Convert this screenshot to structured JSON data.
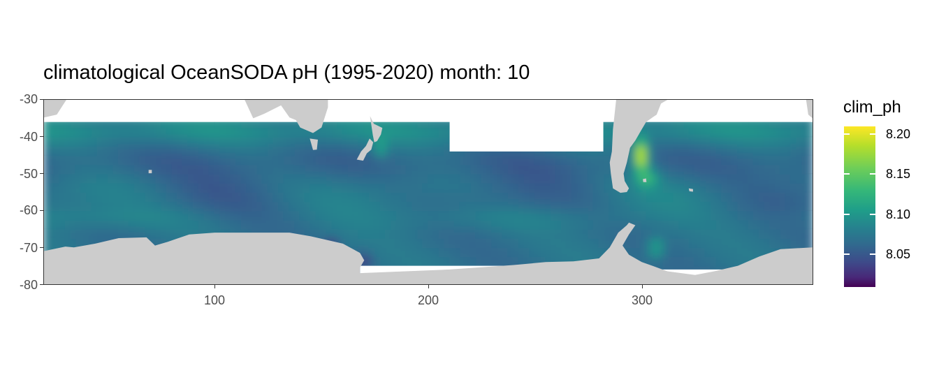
{
  "title": "climatological OceanSODA pH (1995-2020) month: 10",
  "legend": {
    "title": "clim_ph",
    "labels": [
      "8.20",
      "8.15",
      "8.10",
      "8.05"
    ],
    "colormap": "viridis",
    "colors": [
      "#440154",
      "#482878",
      "#3e4989",
      "#31688e",
      "#26828e",
      "#1f9e89",
      "#35b779",
      "#6ece58",
      "#b5de2b",
      "#fde725"
    ]
  },
  "chart_data": {
    "type": "heatmap",
    "title": "climatological OceanSODA pH (1995-2020) month: 10",
    "xlabel": "",
    "ylabel": "",
    "xlim": [
      20,
      380
    ],
    "ylim": [
      -80,
      -30
    ],
    "x_ticks": [
      "100",
      "200",
      "300"
    ],
    "y_ticks": [
      "-30",
      "-40",
      "-50",
      "-60",
      "-70",
      "-80"
    ],
    "grid": true,
    "value_range": [
      8.01,
      8.21
    ],
    "legend_position": "right",
    "land_color": "#cccccc",
    "ocean_data_lat_range": [
      -75,
      -36
    ]
  }
}
